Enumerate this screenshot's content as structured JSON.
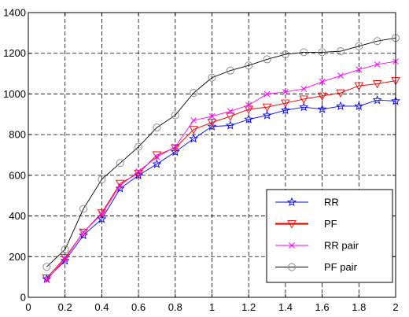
{
  "chart_data": {
    "type": "line",
    "title": "",
    "xlabel": "",
    "ylabel": "",
    "xlim": [
      0,
      2
    ],
    "ylim": [
      0,
      1400
    ],
    "grid": true,
    "grid_style": "dashed",
    "legend_placement": "bottom-right",
    "x_ticks": [
      "0",
      "0.2",
      "0.4",
      "0.6",
      "0.8",
      "1",
      "1.2",
      "1.4",
      "1.6",
      "1.8",
      "2"
    ],
    "y_ticks": [
      "0",
      "200",
      "400",
      "600",
      "800",
      "1000",
      "1200",
      "1400"
    ],
    "x": [
      0.1,
      0.2,
      0.3,
      0.4,
      0.5,
      0.6,
      0.7,
      0.8,
      0.9,
      1.0,
      1.1,
      1.2,
      1.3,
      1.4,
      1.5,
      1.6,
      1.7,
      1.8,
      1.9,
      2.0
    ],
    "series": [
      {
        "name": "RR",
        "color": "#0000ff",
        "marker": "star",
        "values": [
          90,
          180,
          305,
          385,
          535,
          600,
          655,
          715,
          780,
          840,
          845,
          875,
          895,
          920,
          935,
          925,
          940,
          940,
          970,
          965
        ]
      },
      {
        "name": "PF",
        "color": "#ff0000",
        "marker": "triangle-down",
        "values": [
          95,
          195,
          320,
          415,
          560,
          610,
          700,
          735,
          825,
          860,
          890,
          925,
          935,
          955,
          975,
          990,
          1005,
          1040,
          1050,
          1065
        ]
      },
      {
        "name": "RR pair",
        "color": "#ff00ff",
        "marker": "x",
        "values": [
          85,
          190,
          320,
          410,
          550,
          620,
          690,
          740,
          870,
          890,
          915,
          945,
          1000,
          1010,
          1025,
          1060,
          1090,
          1120,
          1145,
          1160
        ]
      },
      {
        "name": "PF pair",
        "color": "#000000",
        "marker": "circle",
        "values": [
          150,
          235,
          435,
          580,
          660,
          740,
          835,
          895,
          1005,
          1080,
          1115,
          1140,
          1170,
          1195,
          1205,
          1205,
          1210,
          1235,
          1260,
          1275
        ]
      }
    ]
  }
}
